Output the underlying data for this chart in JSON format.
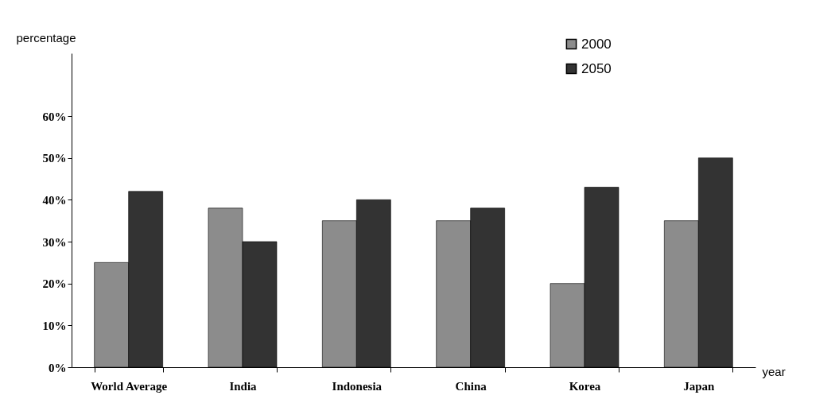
{
  "chart_data": {
    "type": "bar",
    "xlabel": "year",
    "ylabel": "percentage",
    "categories": [
      "World Average",
      "India",
      "Indonesia",
      "China",
      "Korea",
      "Japan"
    ],
    "series": [
      {
        "name": "2000",
        "color": "#8c8c8c",
        "values": [
          25,
          38,
          35,
          35,
          20,
          35
        ]
      },
      {
        "name": "2050",
        "color": "#333333",
        "values": [
          42,
          30,
          40,
          38,
          43,
          50
        ]
      }
    ],
    "ylim": [
      0,
      75
    ],
    "yticks": [
      {
        "value": 0,
        "label": "0%"
      },
      {
        "value": 10,
        "label": "10%"
      },
      {
        "value": 20,
        "label": "20%"
      },
      {
        "value": 30,
        "label": "30%"
      },
      {
        "value": 40,
        "label": "40%"
      },
      {
        "value": 50,
        "label": "50%"
      },
      {
        "value": 60,
        "label": "60%"
      }
    ],
    "grid": false,
    "legend": "top right"
  }
}
